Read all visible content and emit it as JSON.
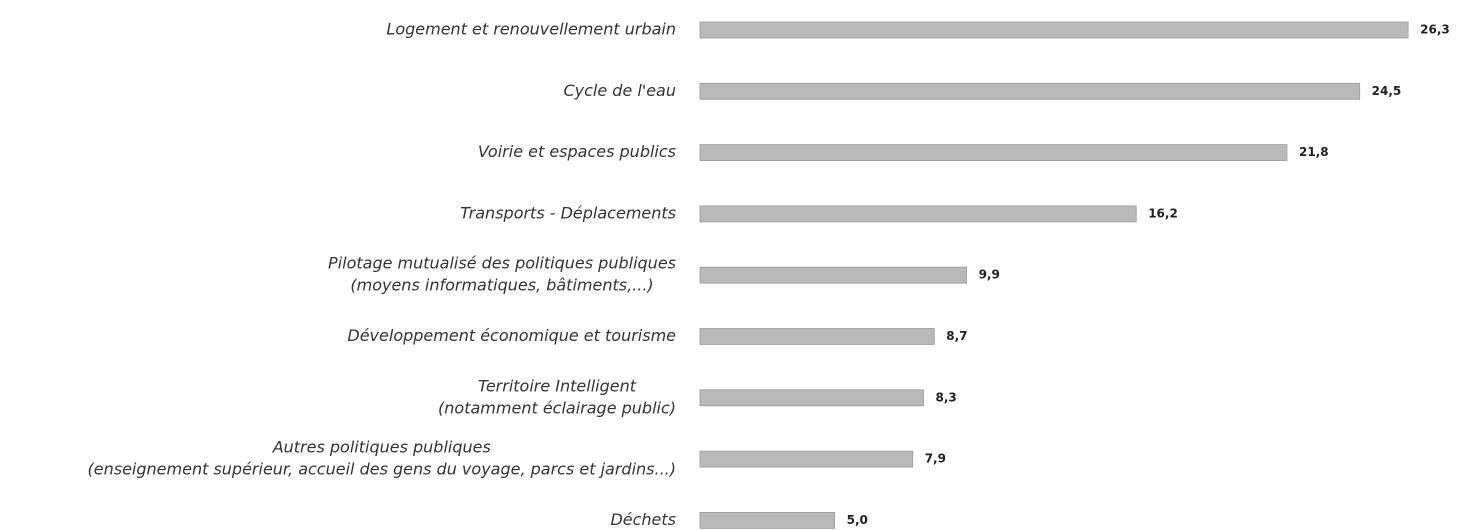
{
  "chart_data": {
    "type": "bar",
    "orientation": "horizontal",
    "categories": [
      [
        "Logement et renouvellement urbain"
      ],
      [
        "Cycle de l'eau"
      ],
      [
        "Voirie et espaces publics"
      ],
      [
        "Transports - Déplacements"
      ],
      [
        "Pilotage mutualisé des politiques publiques",
        "(moyens informatiques, bâtiments,...)"
      ],
      [
        "Développement économique et tourisme"
      ],
      [
        "Territoire Intelligent",
        "(notamment éclairage public)"
      ],
      [
        "Autres politiques publiques",
        "(enseignement supérieur, accueil des gens du voyage, parcs et jardins...)"
      ],
      [
        "Déchets"
      ]
    ],
    "values": [
      26.3,
      24.5,
      21.8,
      16.2,
      9.9,
      8.7,
      8.3,
      7.9,
      5.0
    ],
    "value_labels": [
      "26,3",
      "24,5",
      "21,8",
      "16,2",
      "9,9",
      "8,7",
      "8,3",
      "7,9",
      "5,0"
    ],
    "color": "#b9b9b9",
    "xlim": [
      0,
      27
    ]
  }
}
